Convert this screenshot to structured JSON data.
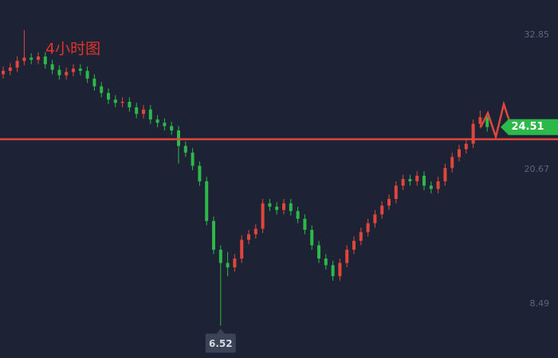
{
  "chart_data": {
    "type": "candlestick",
    "title": "4小时图",
    "open": [
      29.3,
      29.6,
      29.9,
      30.5,
      30.8,
      30.6,
      30.9,
      30.2,
      29.7,
      29.2,
      29.5,
      29.8,
      29.6,
      28.9,
      28.2,
      27.6,
      27.0,
      26.7,
      26.8,
      26.3,
      25.7,
      26.1,
      25.2,
      24.9,
      24.6,
      24.2,
      22.8,
      22.2,
      21.0,
      19.6,
      16.0,
      13.4,
      12.2,
      11.8,
      12.6,
      14.3,
      14.8,
      15.3,
      17.6,
      17.3,
      17.0,
      17.6,
      16.9,
      16.2,
      15.2,
      13.8,
      12.6,
      12.0,
      11.0,
      12.2,
      13.4,
      14.2,
      15.0,
      15.8,
      16.6,
      17.4,
      18.0,
      19.2,
      19.8,
      19.6,
      20.1,
      19.2,
      18.9,
      19.6,
      20.8,
      21.8,
      22.5,
      23.0,
      24.8,
      25.4
    ],
    "high": [
      30.0,
      30.3,
      30.9,
      33.3,
      31.2,
      31.3,
      31.3,
      30.6,
      30.1,
      29.9,
      30.2,
      30.2,
      30.0,
      29.3,
      28.6,
      28.0,
      27.4,
      27.2,
      27.2,
      26.7,
      26.5,
      26.5,
      25.6,
      25.3,
      25.0,
      24.6,
      23.2,
      22.6,
      21.4,
      20.0,
      16.4,
      13.8,
      13.2,
      13.0,
      14.7,
      15.2,
      15.7,
      18.0,
      18.0,
      17.7,
      18.0,
      18.0,
      17.3,
      16.6,
      15.6,
      14.2,
      13.0,
      12.4,
      12.6,
      13.8,
      14.6,
      15.4,
      16.2,
      17.0,
      17.8,
      18.4,
      19.6,
      20.2,
      20.2,
      20.5,
      20.5,
      19.6,
      20.0,
      21.2,
      22.2,
      22.9,
      23.4,
      25.2,
      26.0,
      25.8
    ],
    "low": [
      28.9,
      29.2,
      29.5,
      30.1,
      30.2,
      30.2,
      29.8,
      29.3,
      28.8,
      28.8,
      29.1,
      29.2,
      28.5,
      27.8,
      27.2,
      26.6,
      26.3,
      26.3,
      25.9,
      25.3,
      25.3,
      24.8,
      24.5,
      24.2,
      23.8,
      21.2,
      21.8,
      20.6,
      19.2,
      15.6,
      13.0,
      6.52,
      11.0,
      11.4,
      12.2,
      13.9,
      14.4,
      14.9,
      16.9,
      16.6,
      16.6,
      16.5,
      15.8,
      14.8,
      13.4,
      12.2,
      11.6,
      10.6,
      10.6,
      11.8,
      13.0,
      13.8,
      14.6,
      15.4,
      16.2,
      17.0,
      17.6,
      18.8,
      19.2,
      19.2,
      18.8,
      18.5,
      18.5,
      19.2,
      20.4,
      21.4,
      22.1,
      22.6,
      24.4,
      24.1
    ],
    "close": [
      29.6,
      29.9,
      30.5,
      30.8,
      30.6,
      30.9,
      30.2,
      29.7,
      29.2,
      29.5,
      29.8,
      29.6,
      28.9,
      28.2,
      27.6,
      27.0,
      26.7,
      26.8,
      26.3,
      25.7,
      26.1,
      25.2,
      24.9,
      24.6,
      24.2,
      22.8,
      22.2,
      21.0,
      19.6,
      16.0,
      13.4,
      12.2,
      11.8,
      12.6,
      14.3,
      14.8,
      15.3,
      17.6,
      17.3,
      17.0,
      17.6,
      16.9,
      16.2,
      15.2,
      13.8,
      12.6,
      12.0,
      11.0,
      12.2,
      13.4,
      14.2,
      15.0,
      15.8,
      16.6,
      17.4,
      18.0,
      19.2,
      19.8,
      19.6,
      20.1,
      19.2,
      18.9,
      19.6,
      20.8,
      21.8,
      22.5,
      23.0,
      24.8,
      25.4,
      24.51
    ],
    "up_color": "#e0473c",
    "down_color": "#2db84a",
    "ylim": [
      3.59,
      36.02
    ],
    "yticks": [
      8.49,
      20.67,
      32.85
    ],
    "level_line": 23.41,
    "level_color": "#e0473c",
    "current_price": 24.51,
    "current_color": "#2db84a",
    "low_label_index": 31
  }
}
